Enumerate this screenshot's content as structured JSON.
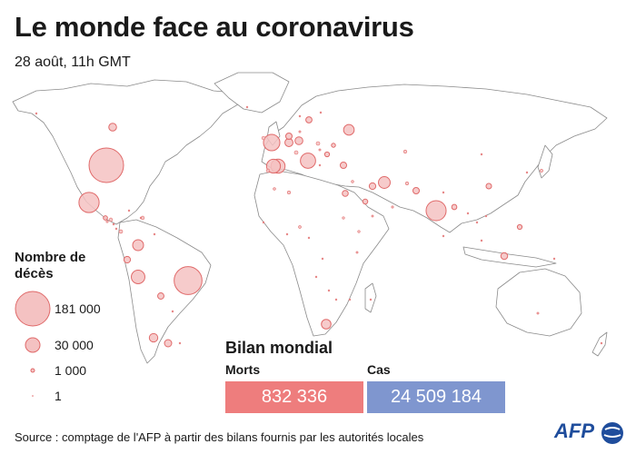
{
  "header": {
    "title": "Le monde face au coronavirus",
    "subtitle": "28 août, 11h GMT"
  },
  "legend": {
    "title": "Nombre de décès",
    "items": [
      {
        "label": "181 000",
        "value": 181000
      },
      {
        "label": "30 000",
        "value": 30000
      },
      {
        "label": "1 000",
        "value": 1000
      },
      {
        "label": "1",
        "value": 1
      }
    ]
  },
  "bilan": {
    "title": "Bilan mondial",
    "morts_label": "Morts",
    "morts_value": "832 336",
    "cas_label": "Cas",
    "cas_value": "24 509 184"
  },
  "colors": {
    "bubble_fill": "#f4c2c2",
    "bubble_stroke": "#e06a6a",
    "morts_box": "#ee7d7d",
    "cas_box": "#7f96cf",
    "afp": "#1f4d9c"
  },
  "footer": {
    "source": "Source : comptage de l'AFP à partir des bilans fournis par les autorités locales",
    "logo": "AFP"
  },
  "map_data": {
    "bubbles": [
      {
        "place": "USA",
        "deaths": 181000
      },
      {
        "place": "Brazil",
        "deaths": 118000
      },
      {
        "place": "Mexico",
        "deaths": 62000
      },
      {
        "place": "India",
        "deaths": 61000
      },
      {
        "place": "UK",
        "deaths": 41000
      },
      {
        "place": "Italy",
        "deaths": 35000
      },
      {
        "place": "France",
        "deaths": 30000
      },
      {
        "place": "Spain",
        "deaths": 29000
      },
      {
        "place": "Peru",
        "deaths": 28000
      },
      {
        "place": "Iran",
        "deaths": 21000
      },
      {
        "place": "Russia",
        "deaths": 17000
      },
      {
        "place": "Colombia",
        "deaths": 18000
      },
      {
        "place": "South Africa",
        "deaths": 14000
      },
      {
        "place": "Chile",
        "deaths": 11000
      },
      {
        "place": "Belgium",
        "deaths": 9900
      },
      {
        "place": "Germany",
        "deaths": 9300
      },
      {
        "place": "Canada",
        "deaths": 9100
      },
      {
        "place": "Argentina",
        "deaths": 8000
      },
      {
        "place": "Indonesia",
        "deaths": 7000
      },
      {
        "place": "Ecuador",
        "deaths": 6500
      },
      {
        "place": "Netherlands",
        "deaths": 6200
      },
      {
        "place": "Turkey",
        "deaths": 6200
      },
      {
        "place": "Sweden",
        "deaths": 5800
      },
      {
        "place": "Pakistan",
        "deaths": 6200
      },
      {
        "place": "Egypt",
        "deaths": 5400
      },
      {
        "place": "China",
        "deaths": 4600
      },
      {
        "place": "Iraq",
        "deaths": 6600
      },
      {
        "place": "Bolivia",
        "deaths": 6000
      },
      {
        "place": "Philippines",
        "deaths": 3400
      },
      {
        "place": "Bangladesh",
        "deaths": 4000
      },
      {
        "place": "Saudi Arabia",
        "deaths": 3800
      },
      {
        "place": "Guatemala",
        "deaths": 2700
      },
      {
        "place": "Honduras",
        "deaths": 1800
      },
      {
        "place": "Panama",
        "deaths": 1900
      },
      {
        "place": "Dominican Rep.",
        "deaths": 1800
      },
      {
        "place": "Ukraine",
        "deaths": 2500
      },
      {
        "place": "Romania",
        "deaths": 3500
      },
      {
        "place": "Poland",
        "deaths": 2000
      },
      {
        "place": "Japan",
        "deaths": 1200
      },
      {
        "place": "Switzerland",
        "deaths": 2000
      },
      {
        "place": "Ireland",
        "deaths": 1770
      },
      {
        "place": "Portugal",
        "deaths": 1800
      },
      {
        "place": "Kazakhstan",
        "deaths": 1600
      },
      {
        "place": "Algeria",
        "deaths": 1500
      },
      {
        "place": "Nigeria",
        "deaths": 1000
      },
      {
        "place": "Sudan",
        "deaths": 800
      },
      {
        "place": "Afghanistan",
        "deaths": 1380
      },
      {
        "place": "Ethiopia",
        "deaths": 800
      },
      {
        "place": "Kenya",
        "deaths": 580
      },
      {
        "place": "Venezuela",
        "deaths": 360
      },
      {
        "place": "Paraguay",
        "deaths": 220
      },
      {
        "place": "Uruguay",
        "deaths": 40
      },
      {
        "place": "Australia",
        "deaths": 600
      },
      {
        "place": "Madagascar",
        "deaths": 200
      },
      {
        "place": "Cameroon",
        "deaths": 400
      },
      {
        "place": "Morocco",
        "deaths": 900
      },
      {
        "place": "Senegal",
        "deaths": 280
      },
      {
        "place": "Ghana",
        "deaths": 260
      },
      {
        "place": "DRC",
        "deaths": 250
      },
      {
        "place": "Angola",
        "deaths": 100
      },
      {
        "place": "Zambia",
        "deaths": 300
      },
      {
        "place": "Zimbabwe",
        "deaths": 200
      },
      {
        "place": "Mozambique",
        "deaths": 20
      },
      {
        "place": "Thailand",
        "deaths": 58
      },
      {
        "place": "Vietnam",
        "deaths": 30
      },
      {
        "place": "Malaysia",
        "deaths": 125
      },
      {
        "place": "Korea",
        "deaths": 300
      },
      {
        "place": "Nepal",
        "deaths": 160
      },
      {
        "place": "Myanmar",
        "deaths": 6
      },
      {
        "place": "Sri Lanka",
        "deaths": 12
      },
      {
        "place": "Oman",
        "deaths": 690
      },
      {
        "place": "Yemen",
        "deaths": 580
      },
      {
        "place": "Israel",
        "deaths": 850
      },
      {
        "place": "Greece",
        "deaths": 240
      },
      {
        "place": "Hungary",
        "deaths": 610
      },
      {
        "place": "Finland",
        "deaths": 330
      },
      {
        "place": "Norway",
        "deaths": 260
      },
      {
        "place": "Denmark",
        "deaths": 620
      },
      {
        "place": "Iceland",
        "deaths": 10
      },
      {
        "place": "Cuba",
        "deaths": 90
      },
      {
        "place": "Haiti",
        "deaths": 220
      },
      {
        "place": "Costa Rica",
        "deaths": 390
      },
      {
        "place": "El Salvador",
        "deaths": 700
      },
      {
        "place": "Nicaragua",
        "deaths": 140
      },
      {
        "place": "New Zealand",
        "deaths": 22
      },
      {
        "place": "Papua NG",
        "deaths": 4
      },
      {
        "place": "Mongolia",
        "deaths": 1
      },
      {
        "place": "Alaska",
        "deaths": 1
      }
    ]
  }
}
